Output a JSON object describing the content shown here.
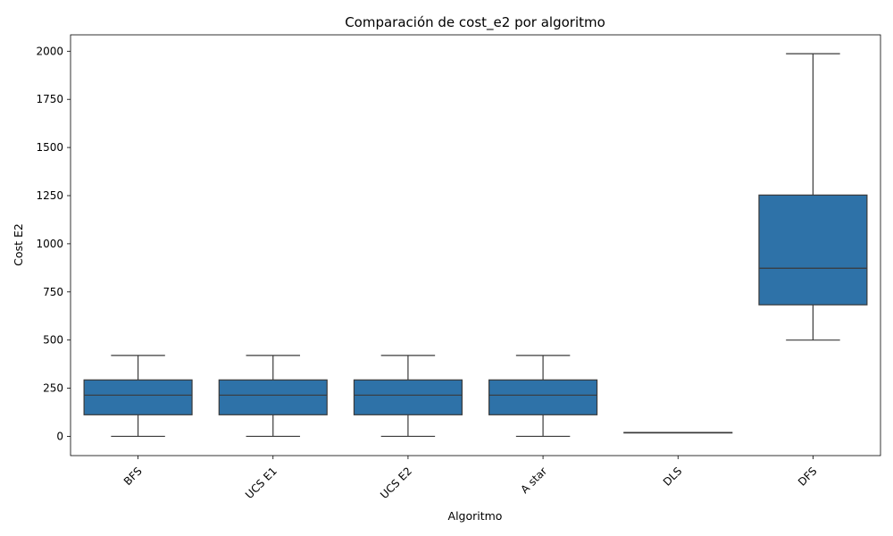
{
  "chart_data": {
    "type": "box",
    "title": "Comparación de cost_e2 por algoritmo",
    "xlabel": "Algoritmo",
    "ylabel": "Cost E2",
    "ylim": [
      -100,
      2085
    ],
    "yticks": [
      0,
      250,
      500,
      750,
      1000,
      1250,
      1500,
      1750,
      2000
    ],
    "box_color": "#2e72a8",
    "line_color": "#3a3a3a",
    "categories": [
      "BFS",
      "UCS E1",
      "UCS E2",
      "A star",
      "DLS",
      "DFS"
    ],
    "boxes": [
      {
        "label": "BFS",
        "whisker_low": 0,
        "q1": 112,
        "median": 214,
        "q3": 293,
        "whisker_high": 420
      },
      {
        "label": "UCS E1",
        "whisker_low": 0,
        "q1": 112,
        "median": 214,
        "q3": 293,
        "whisker_high": 420
      },
      {
        "label": "UCS E2",
        "whisker_low": 0,
        "q1": 112,
        "median": 214,
        "q3": 293,
        "whisker_high": 420
      },
      {
        "label": "A star",
        "whisker_low": 0,
        "q1": 112,
        "median": 214,
        "q3": 293,
        "whisker_high": 420
      },
      {
        "label": "DLS",
        "whisker_low": 20,
        "q1": 20,
        "median": 20,
        "q3": 20,
        "whisker_high": 20
      },
      {
        "label": "DFS",
        "whisker_low": 500,
        "q1": 683,
        "median": 873,
        "q3": 1253,
        "whisker_high": 1987
      }
    ]
  }
}
